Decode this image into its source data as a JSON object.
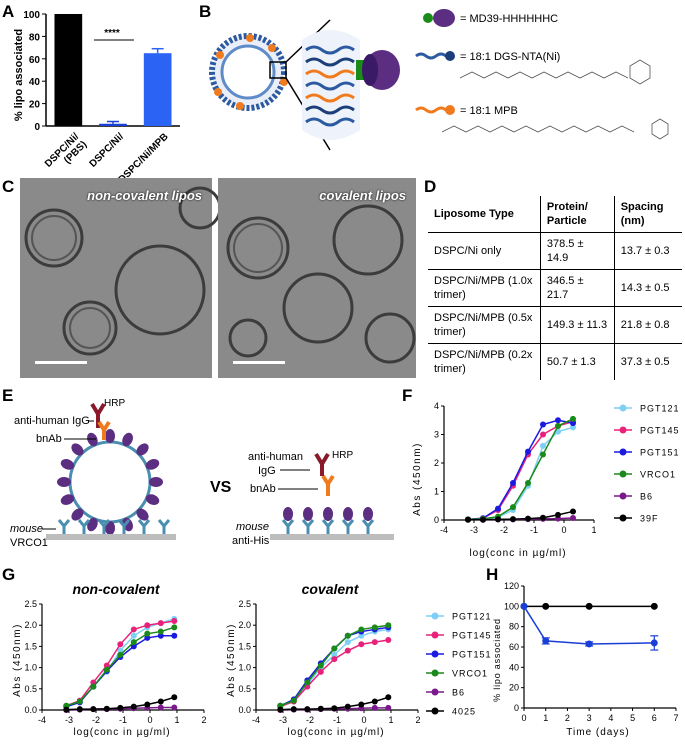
{
  "panels": {
    "a": "A",
    "b": "B",
    "c": "C",
    "d": "D",
    "e": "E",
    "f": "F",
    "g": "G",
    "h": "H"
  },
  "panelA": {
    "significance": "****",
    "chart_data": {
      "type": "bar",
      "categories": [
        "DSPC/Ni/ (PBS)",
        "DSPC/Ni/",
        "DSPC/Ni/MPB"
      ],
      "values": [
        100,
        2,
        65
      ],
      "errors": [
        0,
        2,
        4
      ],
      "colors": [
        "#000000",
        "#1a3fd6",
        "#2b63f5"
      ],
      "ylabel": "% lipo associated",
      "ylim": [
        0,
        100
      ],
      "yticks": [
        "0",
        "20",
        "40",
        "60",
        "80",
        "100"
      ]
    }
  },
  "panelB": {
    "legend": [
      {
        "label": "= MD39-HHHHHHC",
        "icon": "trimer-icon"
      },
      {
        "label": "= 18:1 DGS-NTA(Ni)",
        "icon": "nta-lipid-icon"
      },
      {
        "label": "= 18:1 MPB",
        "icon": "mpb-lipid-icon"
      }
    ]
  },
  "panelC": {
    "images": [
      {
        "label": "non-covalent lipos"
      },
      {
        "label": "covalent lipos"
      }
    ]
  },
  "panelD": {
    "headers": [
      "Liposome Type",
      "Protein/ Particle",
      "Spacing (nm)"
    ],
    "rows": [
      [
        "DSPC/Ni only",
        "378.5 ± 14.9",
        "13.7 ± 0.3"
      ],
      [
        "DSPC/Ni/MPB (1.0x trimer)",
        "346.5 ± 21.7",
        "14.3 ± 0.5"
      ],
      [
        "DSPC/Ni/MPB (0.5x trimer)",
        "149.3 ± 11.3",
        "21.8 ± 0.8"
      ],
      [
        "DSPC/Ni/MPB (0.2x trimer)",
        "50.7 ± 1.3",
        "37.3 ± 0.5"
      ]
    ]
  },
  "panelE": {
    "left": {
      "top_label": "anti-human IgG",
      "hrp": "HRP",
      "bnab": "bnAb",
      "mouse": "mouse",
      "capture": "VRCO1"
    },
    "vs": "VS",
    "right": {
      "top_label1": "anti-human",
      "top_label2": "IgG",
      "hrp": "HRP",
      "bnab": "bnAb",
      "mouse": "mouse",
      "capture": "anti-His"
    }
  },
  "panelF": {
    "chart_data": {
      "type": "line",
      "xlabel": "log(conc in µg/ml)",
      "ylabel": "Abs (450nm)",
      "xlim": [
        -4,
        1
      ],
      "ylim": [
        0,
        4
      ],
      "xticks": [
        "-4",
        "-3",
        "-2",
        "-1",
        "0",
        "1"
      ],
      "yticks": [
        "0",
        "1",
        "2",
        "3",
        "4"
      ],
      "x": [
        -3.2,
        -2.7,
        -2.2,
        -1.7,
        -1.2,
        -0.7,
        -0.2,
        0.3
      ],
      "series": [
        {
          "name": "PGT121",
          "color": "#7ecff5",
          "values": [
            0.02,
            0.04,
            0.1,
            0.35,
            1.2,
            2.6,
            3.1,
            3.25
          ]
        },
        {
          "name": "PGT145",
          "color": "#e8227a",
          "values": [
            0.02,
            0.06,
            0.35,
            1.2,
            2.3,
            3.0,
            3.3,
            3.45
          ]
        },
        {
          "name": "PGT151",
          "color": "#1a1ae0",
          "values": [
            0.02,
            0.06,
            0.4,
            1.3,
            2.4,
            3.35,
            3.5,
            3.4
          ]
        },
        {
          "name": "VRCO1",
          "color": "#1a8a1a",
          "values": [
            0.02,
            0.04,
            0.12,
            0.45,
            1.3,
            2.3,
            3.3,
            3.55
          ]
        },
        {
          "name": "B6",
          "color": "#7a1a8a",
          "values": [
            0.01,
            0.01,
            0.02,
            0.02,
            0.03,
            0.04,
            0.05,
            0.07
          ]
        },
        {
          "name": "39F",
          "color": "#000000",
          "values": [
            0.01,
            0.01,
            0.02,
            0.03,
            0.05,
            0.08,
            0.18,
            0.3
          ]
        }
      ]
    }
  },
  "panelG": {
    "charts": [
      {
        "title": "non-covalent",
        "xlabel": "log(conc in µg/ml)",
        "ylabel": "Abs (450nm)",
        "xlim": [
          -4,
          2
        ],
        "ylim": [
          0,
          2.5
        ],
        "xticks": [
          "-4",
          "-3",
          "-2",
          "-1",
          "0",
          "1",
          "2"
        ],
        "yticks": [
          "0.0",
          "0.5",
          "1.0",
          "1.5",
          "2.0",
          "2.5"
        ],
        "x": [
          -3.1,
          -2.6,
          -2.1,
          -1.6,
          -1.1,
          -0.6,
          -0.1,
          0.4,
          0.9
        ],
        "series": [
          {
            "name": "PGT121",
            "color": "#7ecff5",
            "values": [
              0.08,
              0.18,
              0.55,
              0.9,
              1.4,
              1.75,
              1.95,
              2.05,
              2.15
            ]
          },
          {
            "name": "PGT145",
            "color": "#e8227a",
            "values": [
              0.1,
              0.22,
              0.65,
              1.05,
              1.55,
              1.9,
              2.0,
              2.05,
              2.1
            ]
          },
          {
            "name": "PGT151",
            "color": "#1a1ae0",
            "values": [
              0.08,
              0.18,
              0.55,
              0.92,
              1.25,
              1.5,
              1.7,
              1.75,
              1.75
            ]
          },
          {
            "name": "VRCO1",
            "color": "#1a8a1a",
            "values": [
              0.1,
              0.2,
              0.55,
              0.95,
              1.3,
              1.6,
              1.8,
              1.85,
              1.95
            ]
          },
          {
            "name": "B6",
            "color": "#7a1a8a",
            "values": [
              0.0,
              0.01,
              0.02,
              0.02,
              0.03,
              0.04,
              0.05,
              0.06,
              0.06
            ]
          },
          {
            "name": "4025",
            "color": "#000000",
            "values": [
              0.01,
              0.02,
              0.02,
              0.03,
              0.05,
              0.08,
              0.13,
              0.2,
              0.3
            ]
          }
        ]
      },
      {
        "title": "covalent",
        "xlabel": "log(conc in µg/ml)",
        "ylabel": "Abs (450nm)",
        "xlim": [
          -4,
          2
        ],
        "ylim": [
          0,
          2.5
        ],
        "xticks": [
          "-4",
          "-3",
          "-2",
          "-1",
          "0",
          "1",
          "2"
        ],
        "yticks": [
          "0.0",
          "0.5",
          "1.0",
          "1.5",
          "2.0",
          "2.5"
        ],
        "x": [
          -3.1,
          -2.6,
          -2.1,
          -1.6,
          -1.1,
          -0.6,
          -0.1,
          0.4,
          0.9
        ],
        "series": [
          {
            "name": "PGT121",
            "color": "#7ecff5",
            "values": [
              0.08,
              0.2,
              0.6,
              1.0,
              1.3,
              1.6,
              1.75,
              1.85,
              1.9
            ]
          },
          {
            "name": "PGT145",
            "color": "#e8227a",
            "values": [
              0.08,
              0.2,
              0.55,
              0.9,
              1.2,
              1.4,
              1.55,
              1.6,
              1.65
            ]
          },
          {
            "name": "PGT151",
            "color": "#1a1ae0",
            "values": [
              0.1,
              0.25,
              0.7,
              1.1,
              1.45,
              1.75,
              1.85,
              1.9,
              1.95
            ]
          },
          {
            "name": "VRCO1",
            "color": "#1a8a1a",
            "values": [
              0.1,
              0.22,
              0.65,
              1.05,
              1.45,
              1.75,
              1.9,
              1.95,
              2.0
            ]
          },
          {
            "name": "B6",
            "color": "#7a1a8a",
            "values": [
              0.0,
              0.01,
              0.01,
              0.02,
              0.03,
              0.03,
              0.04,
              0.05,
              0.05
            ]
          },
          {
            "name": "4025",
            "color": "#000000",
            "values": [
              0.01,
              0.02,
              0.02,
              0.03,
              0.04,
              0.08,
              0.13,
              0.2,
              0.3
            ]
          }
        ]
      }
    ],
    "legend": [
      "PGT121",
      "PGT145",
      "PGT151",
      "VRCO1",
      "B6",
      "4025"
    ]
  },
  "panelH": {
    "chart_data": {
      "type": "line",
      "xlabel": "Time (days)",
      "ylabel": "% lipo associated",
      "xlim": [
        0,
        7
      ],
      "ylim": [
        0,
        120
      ],
      "xticks": [
        "0",
        "1",
        "2",
        "3",
        "4",
        "5",
        "6",
        "7"
      ],
      "yticks": [
        "0",
        "20",
        "40",
        "60",
        "80",
        "100",
        "120"
      ],
      "x": [
        0,
        1,
        3,
        6
      ],
      "series": [
        {
          "color": "#000000",
          "values": [
            100,
            100,
            100,
            100
          ],
          "errors": [
            0,
            0,
            0,
            0
          ]
        },
        {
          "color": "#1a3fd6",
          "values": [
            100,
            66,
            63,
            64
          ],
          "errors": [
            0,
            3,
            2,
            7
          ]
        }
      ]
    }
  }
}
